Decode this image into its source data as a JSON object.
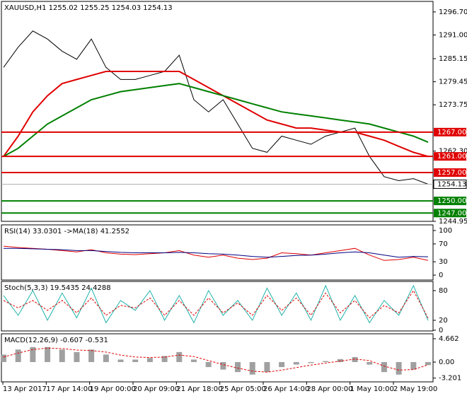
{
  "chart_data": [
    {
      "type": "line",
      "title": "XAUUSD,H1",
      "ohlc": [
        1255.02,
        1255.25,
        1254.03,
        1254.13
      ],
      "ylim": [
        1244.95,
        1299.3
      ],
      "yticks": [
        {
          "value": 1296.7,
          "label": "1296.70"
        },
        {
          "value": 1291,
          "label": "1291.00"
        },
        1285.15,
        1279.45,
        1273.75,
        {
          "value": 1262.3,
          "label": "1262.30"
        },
        1244.95
      ],
      "series": [
        {
          "color": "#000000",
          "values": [
            1283,
            1288,
            1292,
            1290,
            1287,
            1285,
            1290,
            1283,
            1280,
            1280,
            1281,
            1282,
            1286,
            1275,
            1272,
            1275,
            1269,
            1263,
            1262,
            1266,
            1265,
            1264,
            1266,
            1267,
            1268,
            1261,
            1256,
            1255,
            1255.5,
            1254.13
          ]
        },
        {
          "color": "#e00000",
          "values": [
            1261,
            1266,
            1272,
            1276,
            1279,
            1280,
            1281,
            1282,
            1282,
            1282,
            1282,
            1282,
            1282,
            1280,
            1278,
            1276,
            1274,
            1272,
            1270,
            1269,
            1268,
            1268,
            1267.5,
            1267,
            1267,
            1266,
            1265,
            1263.5,
            1262,
            1261
          ]
        },
        {
          "color": "#008000",
          "values": [
            1261,
            1263,
            1266,
            1269,
            1271,
            1273,
            1275,
            1276,
            1277,
            1277.5,
            1278,
            1278.5,
            1279,
            1278,
            1277,
            1276,
            1275,
            1274,
            1273,
            1272,
            1271.5,
            1271,
            1270.5,
            1270,
            1269.5,
            1269,
            1268,
            1267,
            1266,
            1264.5
          ]
        }
      ],
      "levels": [
        {
          "value": 1267,
          "label": "1267.00",
          "color": "#e00000"
        },
        {
          "value": 1261,
          "label": "1261.00",
          "color": "#e00000"
        },
        {
          "value": 1257,
          "label": "1257.00",
          "color": "#e00000"
        },
        {
          "value": 1250,
          "label": "1250.00",
          "color": "#008000"
        },
        {
          "value": 1247,
          "label": "1247.00",
          "color": "#008000"
        }
      ],
      "current": 1254.13
    },
    {
      "type": "line",
      "title": "RSI(14)",
      "value": 33.0301,
      "ma_label": "->MA(18)",
      "ma_value": 41.2552,
      "ylim": [
        -11,
        112.7
      ],
      "yticks": [
        100,
        70,
        30,
        0
      ],
      "series": [
        {
          "color": "#e00000",
          "values": [
            65,
            62,
            60,
            58,
            55,
            52,
            57,
            50,
            47,
            46,
            48,
            50,
            55,
            45,
            40,
            45,
            38,
            35,
            38,
            50,
            48,
            45,
            50,
            55,
            60,
            45,
            33,
            35,
            40,
            33.0301
          ]
        },
        {
          "color": "#000080",
          "values": [
            60,
            60,
            59,
            58,
            57,
            55,
            55,
            53,
            51,
            50,
            50,
            50,
            51,
            50,
            48,
            47,
            45,
            42,
            40,
            42,
            44,
            45,
            47,
            50,
            52,
            50,
            45,
            40,
            42,
            41.2552
          ]
        }
      ]
    },
    {
      "type": "line",
      "title": "Stoch(5,3,3)",
      "value": 19.5435,
      "signal_value": 24.4288,
      "ylim": [
        -1.5,
        98.5
      ],
      "yticks": [
        80,
        20,
        0
      ],
      "series": [
        {
          "color": "#20b2aa",
          "values": [
            70,
            30,
            80,
            20,
            75,
            25,
            85,
            15,
            60,
            40,
            80,
            20,
            70,
            15,
            80,
            30,
            60,
            20,
            85,
            30,
            75,
            20,
            90,
            20,
            70,
            15,
            60,
            30,
            90,
            19.5435
          ]
        },
        {
          "color": "#e00000",
          "dashed": true,
          "values": [
            60,
            45,
            60,
            40,
            60,
            35,
            65,
            30,
            50,
            45,
            65,
            30,
            60,
            30,
            65,
            35,
            55,
            30,
            70,
            40,
            65,
            30,
            75,
            35,
            60,
            25,
            50,
            35,
            80,
            24.4288
          ]
        }
      ]
    },
    {
      "type": "bar",
      "title": "MACD(12,26,9)",
      "value": -0.607,
      "signal_value": -0.531,
      "ylim": [
        -3.95,
        5.65
      ],
      "yticks": [
        4.662,
        {
          "value": 0,
          "label": "0.00"
        },
        -3.201
      ],
      "series": [
        {
          "color": "#a0a0a0",
          "values": [
            1.5,
            2.5,
            3,
            3,
            2.5,
            2,
            2.5,
            1.5,
            0.5,
            0.5,
            0.8,
            1.2,
            2,
            0.5,
            -1,
            -1.5,
            -2,
            -2.5,
            -2,
            -1,
            -0.5,
            -0.2,
            0.2,
            0.6,
            1,
            -0.5,
            -2,
            -2.5,
            -1.5,
            -0.607
          ]
        },
        {
          "color": "#e00000",
          "dashed": true,
          "line": true,
          "values": [
            1,
            1.8,
            2.5,
            2.8,
            2.7,
            2.4,
            2.3,
            2,
            1.4,
            1,
            0.9,
            1,
            1.4,
            1.1,
            0.3,
            -0.5,
            -1.2,
            -1.8,
            -2,
            -1.6,
            -1.1,
            -0.6,
            -0.2,
            0.2,
            0.6,
            0.3,
            -0.8,
            -1.6,
            -1.5,
            -0.531
          ]
        }
      ]
    }
  ],
  "x_axis": {
    "labels": [
      "13 Apr 2017",
      "17 Apr 14:00",
      "19 Apr 00:00",
      "20 Apr 09:00",
      "21 Apr 18:00",
      "25 Apr 05:00",
      "26 Apr 14:00",
      "28 Apr 00:00",
      "1 May 10:00",
      "2 May 19:00"
    ]
  }
}
